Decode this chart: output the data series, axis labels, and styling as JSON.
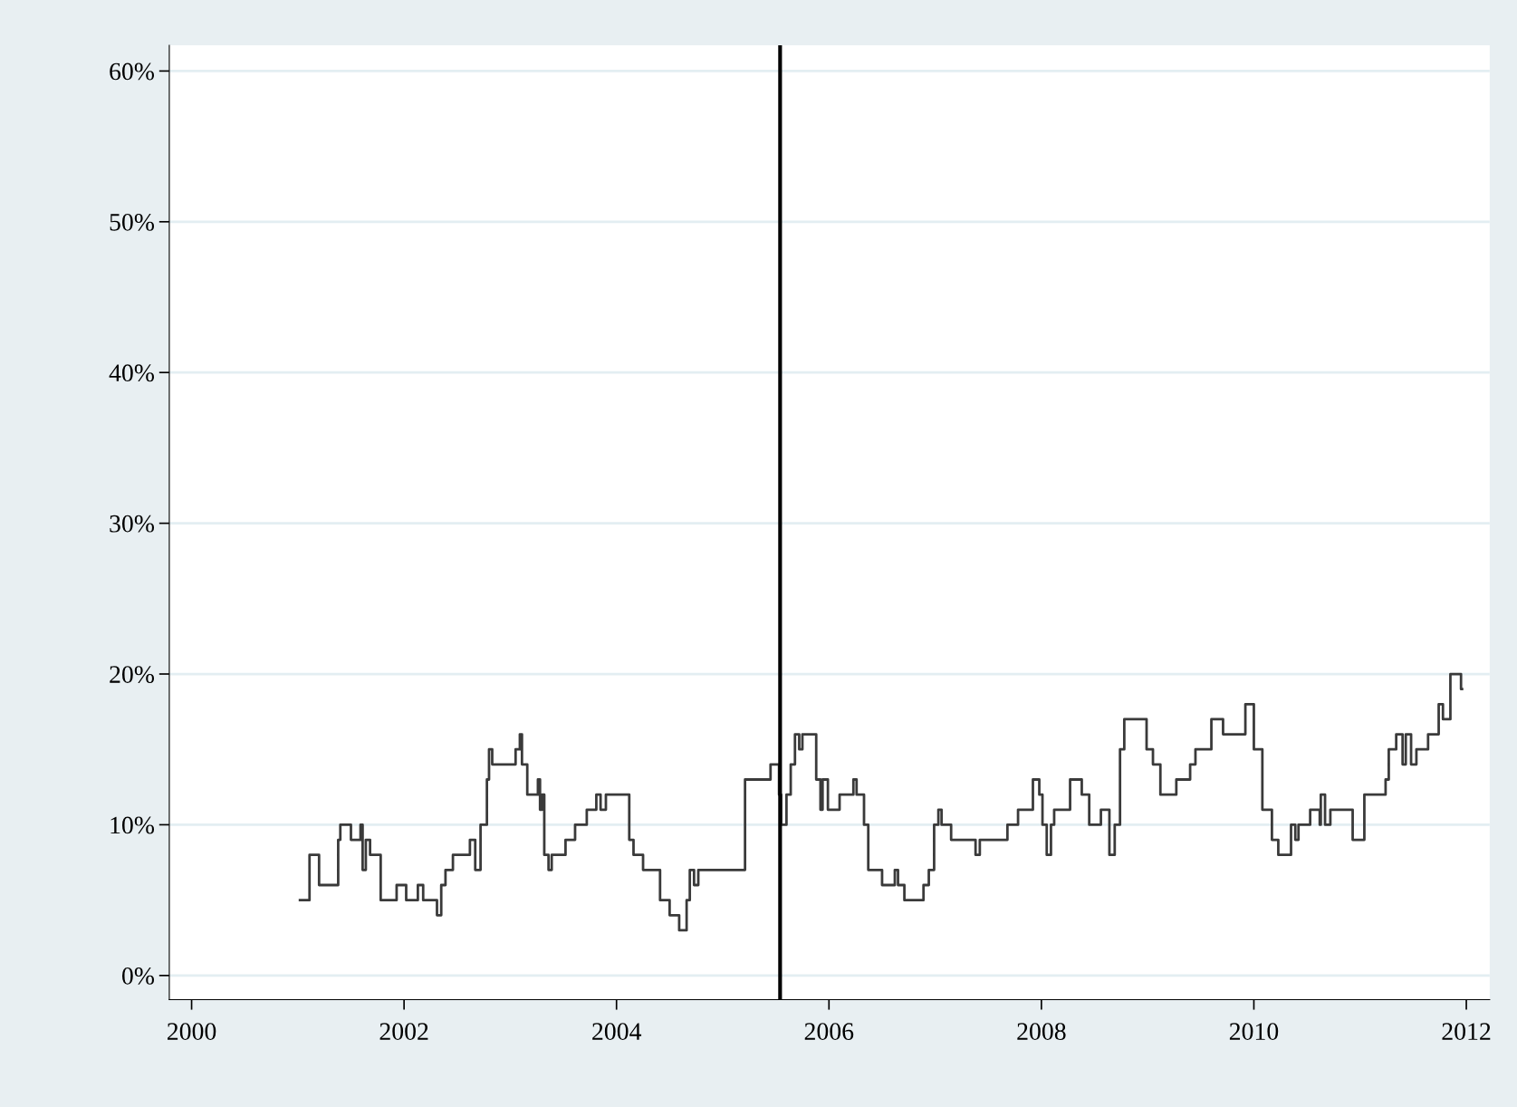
{
  "chart_data": {
    "type": "step",
    "x": [
      2001.02,
      2001.11,
      2001.2,
      2001.21,
      2001.36,
      2001.38,
      2001.4,
      2001.5,
      2001.59,
      2001.61,
      2001.64,
      2001.68,
      2001.78,
      2001.93,
      2002.02,
      2002.13,
      2002.18,
      2002.31,
      2002.35,
      2002.39,
      2002.46,
      2002.62,
      2002.67,
      2002.72,
      2002.78,
      2002.8,
      2002.83,
      2003.05,
      2003.09,
      2003.11,
      2003.16,
      2003.26,
      2003.28,
      2003.3,
      2003.32,
      2003.36,
      2003.39,
      2003.52,
      2003.61,
      2003.72,
      2003.81,
      2003.85,
      2003.9,
      2004.12,
      2004.16,
      2004.25,
      2004.41,
      2004.5,
      2004.59,
      2004.66,
      2004.69,
      2004.73,
      2004.77,
      2005.21,
      2005.45,
      2005.53,
      2005.55,
      2005.6,
      2005.64,
      2005.68,
      2005.72,
      2005.75,
      2005.88,
      2005.92,
      2005.94,
      2005.99,
      2006.1,
      2006.23,
      2006.26,
      2006.33,
      2006.37,
      2006.5,
      2006.62,
      2006.65,
      2006.71,
      2006.89,
      2006.94,
      2006.99,
      2007.03,
      2007.06,
      2007.15,
      2007.38,
      2007.42,
      2007.68,
      2007.78,
      2007.92,
      2007.98,
      2008.01,
      2008.05,
      2008.09,
      2008.12,
      2008.27,
      2008.38,
      2008.45,
      2008.56,
      2008.64,
      2008.69,
      2008.74,
      2008.78,
      2008.99,
      2009.05,
      2009.12,
      2009.27,
      2009.4,
      2009.45,
      2009.6,
      2009.71,
      2009.92,
      2010.0,
      2010.08,
      2010.17,
      2010.23,
      2010.35,
      2010.39,
      2010.42,
      2010.53,
      2010.62,
      2010.63,
      2010.67,
      2010.72,
      2010.93,
      2011.04,
      2011.24,
      2011.27,
      2011.34,
      2011.4,
      2011.43,
      2011.48,
      2011.53,
      2011.64,
      2011.74,
      2011.78,
      2011.85,
      2011.95,
      2011.96
    ],
    "values": [
      5,
      8,
      6,
      6,
      6,
      9,
      10,
      9,
      10,
      7,
      9,
      8,
      5,
      6,
      5,
      6,
      5,
      4,
      6,
      7,
      8,
      9,
      7,
      10,
      13,
      15,
      14,
      15,
      16,
      14,
      12,
      13,
      11,
      12,
      8,
      7,
      8,
      9,
      10,
      11,
      12,
      11,
      12,
      9,
      8,
      7,
      5,
      4,
      3,
      5,
      7,
      6,
      7,
      13,
      14,
      12,
      10,
      12,
      14,
      16,
      15,
      16,
      13,
      11,
      13,
      11,
      12,
      13,
      12,
      10,
      7,
      6,
      7,
      6,
      5,
      6,
      7,
      10,
      11,
      10,
      9,
      8,
      9,
      10,
      11,
      13,
      12,
      10,
      8,
      10,
      11,
      13,
      12,
      10,
      11,
      8,
      10,
      15,
      17,
      15,
      14,
      12,
      13,
      14,
      15,
      17,
      16,
      18,
      15,
      11,
      9,
      8,
      10,
      9,
      10,
      11,
      10,
      12,
      10,
      11,
      9,
      12,
      13,
      15,
      16,
      14,
      16,
      14,
      15,
      16,
      18,
      17,
      20,
      19,
      19
    ],
    "color": "#3a3a3a",
    "xlim": [
      1999.79,
      2012.22
    ],
    "xticks": [
      2000,
      2002,
      2004,
      2006,
      2008,
      2010,
      2012
    ],
    "ylim": [
      -1.6,
      61.7
    ],
    "yticks": [
      {
        "value": 0,
        "label": "0%"
      },
      {
        "value": 10,
        "label": "10%"
      },
      {
        "value": 20,
        "label": "20%"
      },
      {
        "value": 30,
        "label": "30%"
      },
      {
        "value": 40,
        "label": "40%"
      },
      {
        "value": 50,
        "label": "50%"
      },
      {
        "value": 60,
        "label": "60%"
      }
    ],
    "ref_lines": [
      {
        "axis": "x",
        "value": 2005.54,
        "label": null,
        "color": "#000000"
      }
    ],
    "grid": "y"
  }
}
